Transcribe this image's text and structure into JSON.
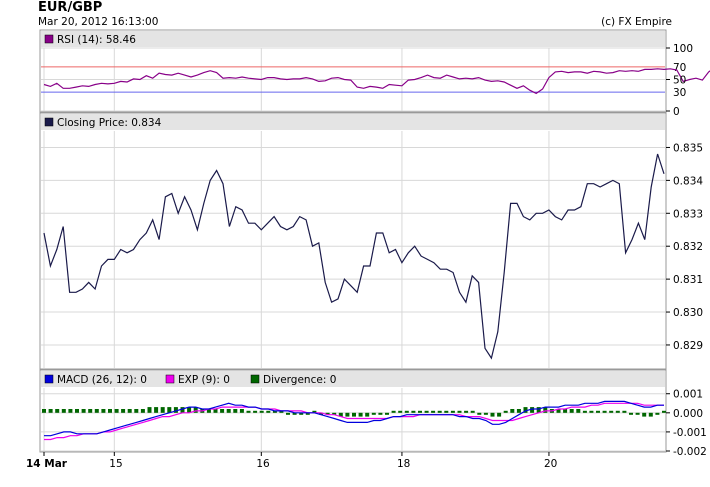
{
  "header": {
    "title": "EUR/GBP",
    "date": "Mar 20, 2012 16:13:00",
    "credit": "(c) FX Empire"
  },
  "colors": {
    "rsi": "#880088",
    "price": "#1a1a4a",
    "macd": "#0000dd",
    "exp": "#ee00ee",
    "divergence": "#006600",
    "band_upper": "#ee6666",
    "band_lower": "#6666ee",
    "grid": "#d8d8d8",
    "legend_bg": "#e4e4e4"
  },
  "chart_data": [
    {
      "type": "line",
      "panel": "rsi",
      "legend": "RSI (14): 58.46",
      "ylim": [
        0,
        100
      ],
      "yticks": [
        "100",
        "50",
        "0"
      ],
      "bands": [
        {
          "value": 70,
          "label": "70"
        },
        {
          "value": 30,
          "label": "30"
        }
      ],
      "values": [
        42,
        39,
        44,
        36,
        36,
        38,
        40,
        39,
        42,
        44,
        43,
        44,
        47,
        46,
        51,
        50,
        56,
        52,
        60,
        58,
        57,
        60,
        57,
        54,
        57,
        61,
        64,
        61,
        52,
        53,
        52,
        54,
        52,
        51,
        50,
        53,
        53,
        51,
        50,
        51,
        51,
        53,
        51,
        47,
        48,
        52,
        53,
        50,
        49,
        38,
        36,
        39,
        38,
        36,
        42,
        41,
        40,
        49,
        50,
        53,
        57,
        53,
        52,
        57,
        54,
        51,
        52,
        51,
        53,
        49,
        47,
        48,
        46,
        41,
        36,
        40,
        33,
        28,
        35,
        53,
        62,
        63,
        61,
        62,
        62,
        60,
        63,
        62,
        60,
        61,
        64,
        63,
        64,
        63,
        66,
        66,
        67,
        66,
        67,
        65,
        47,
        50,
        52,
        49,
        62,
        69,
        62,
        58
      ]
    },
    {
      "type": "line",
      "panel": "price",
      "legend": "Closing Price: 0.834",
      "ylim": [
        0.8283,
        0.8355
      ],
      "yticks": [
        "0.835",
        "0.834",
        "0.833",
        "0.832",
        "0.831",
        "0.830",
        "0.829"
      ],
      "values": [
        0.8324,
        0.8314,
        0.8319,
        0.8326,
        0.8306,
        0.8306,
        0.8307,
        0.8309,
        0.8307,
        0.8314,
        0.8316,
        0.8316,
        0.8319,
        0.8318,
        0.8319,
        0.8322,
        0.8324,
        0.8328,
        0.8322,
        0.8335,
        0.8336,
        0.833,
        0.8335,
        0.8331,
        0.8325,
        0.8333,
        0.834,
        0.8343,
        0.8339,
        0.8326,
        0.8332,
        0.8331,
        0.8327,
        0.8327,
        0.8325,
        0.8327,
        0.8329,
        0.8326,
        0.8325,
        0.8326,
        0.8329,
        0.8328,
        0.832,
        0.8321,
        0.8309,
        0.8303,
        0.8304,
        0.831,
        0.8308,
        0.8306,
        0.8314,
        0.8314,
        0.8324,
        0.8324,
        0.8318,
        0.8319,
        0.8315,
        0.8318,
        0.832,
        0.8317,
        0.8316,
        0.8315,
        0.8313,
        0.8313,
        0.8312,
        0.8306,
        0.8303,
        0.8311,
        0.8309,
        0.8289,
        0.8286,
        0.8294,
        0.8312,
        0.8333,
        0.8333,
        0.8329,
        0.8328,
        0.833,
        0.833,
        0.8331,
        0.8329,
        0.8328,
        0.8331,
        0.8331,
        0.8332,
        0.8339,
        0.8339,
        0.8338,
        0.8339,
        0.834,
        0.8339,
        0.8318,
        0.8322,
        0.8327,
        0.8322,
        0.8338,
        0.8348,
        0.8342
      ]
    },
    {
      "type": "line",
      "panel": "macd",
      "legend": [
        {
          "name": "MACD (26, 12): 0"
        },
        {
          "name": "EXP (9): 0"
        },
        {
          "name": "Divergence: 0"
        }
      ],
      "ylim": [
        -0.002,
        0.0013
      ],
      "yticks": [
        "0.001",
        "0.000",
        "-0.001",
        "-0.002"
      ],
      "macd": [
        -0.0012,
        -0.0012,
        -0.0011,
        -0.001,
        -0.001,
        -0.0011,
        -0.0011,
        -0.0011,
        -0.0011,
        -0.001,
        -0.0009,
        -0.0008,
        -0.0007,
        -0.0006,
        -0.0005,
        -0.0004,
        -0.0003,
        -0.0002,
        -0.0001,
        0.0,
        0.0001,
        0.0002,
        0.0003,
        0.0003,
        0.0002,
        0.0002,
        0.0003,
        0.0004,
        0.0005,
        0.0004,
        0.0004,
        0.0003,
        0.0003,
        0.0002,
        0.0002,
        0.0001,
        0.0001,
        0.0001,
        0.0,
        0.0,
        0.0,
        0.0,
        -0.0001,
        -0.0002,
        -0.0003,
        -0.0004,
        -0.0005,
        -0.0005,
        -0.0005,
        -0.0005,
        -0.0004,
        -0.0004,
        -0.0003,
        -0.0002,
        -0.0002,
        -0.0001,
        -0.0001,
        -0.0001,
        -0.0001,
        -0.0001,
        -0.0001,
        -0.0001,
        -0.0001,
        -0.0002,
        -0.0002,
        -0.0003,
        -0.0003,
        -0.0004,
        -0.0006,
        -0.0006,
        -0.0005,
        -0.0003,
        -0.0001,
        0.0001,
        0.0002,
        0.0002,
        0.0003,
        0.0003,
        0.0003,
        0.0004,
        0.0004,
        0.0004,
        0.0005,
        0.0005,
        0.0005,
        0.0006,
        0.0006,
        0.0006,
        0.0006,
        0.0005,
        0.0004,
        0.0003,
        0.0003,
        0.0004,
        0.0004
      ],
      "exp": [
        -0.0014,
        -0.0014,
        -0.0013,
        -0.0013,
        -0.0012,
        -0.0012,
        -0.0011,
        -0.0011,
        -0.0011,
        -0.001,
        -0.001,
        -0.0009,
        -0.0008,
        -0.0007,
        -0.0006,
        -0.0005,
        -0.0004,
        -0.0003,
        -0.0002,
        -0.0002,
        -0.0001,
        0.0,
        0.0,
        0.0001,
        0.0001,
        0.0002,
        0.0002,
        0.0003,
        0.0003,
        0.0003,
        0.0003,
        0.0003,
        0.0003,
        0.0002,
        0.0002,
        0.0002,
        0.0001,
        0.0001,
        0.0001,
        0.0001,
        0.0,
        0.0,
        0.0,
        -0.0001,
        -0.0001,
        -0.0002,
        -0.0003,
        -0.0003,
        -0.0003,
        -0.0003,
        -0.0003,
        -0.0003,
        -0.0003,
        -0.0002,
        -0.0002,
        -0.0002,
        -0.0002,
        -0.0001,
        -0.0001,
        -0.0001,
        -0.0001,
        -0.0001,
        -0.0001,
        -0.0001,
        -0.0002,
        -0.0002,
        -0.0002,
        -0.0003,
        -0.0004,
        -0.0004,
        -0.0004,
        -0.0004,
        -0.0003,
        -0.0002,
        -0.0001,
        0.0,
        0.0001,
        0.0001,
        0.0002,
        0.0002,
        0.0003,
        0.0003,
        0.0003,
        0.0004,
        0.0004,
        0.0005,
        0.0005,
        0.0005,
        0.0005,
        0.0005,
        0.0005,
        0.0004,
        0.0004,
        0.0004,
        0.0004
      ],
      "divergence": [
        0.0002,
        0.0002,
        0.0002,
        0.0002,
        0.0002,
        0.0002,
        0.0002,
        0.0002,
        0.0002,
        0.0002,
        0.0002,
        0.0002,
        0.0002,
        0.0002,
        0.0002,
        0.0002,
        0.0003,
        0.0003,
        0.0003,
        0.0003,
        0.0003,
        0.0003,
        0.0003,
        0.0003,
        0.0002,
        0.0002,
        0.0002,
        0.0002,
        0.0002,
        0.0002,
        0.0002,
        0.0001,
        0.0001,
        0.0,
        0.0,
        0.0,
        0.0,
        -0.0001,
        -0.0001,
        -0.0001,
        -0.0001,
        0.0,
        -0.0001,
        -0.0001,
        -0.0001,
        -0.0002,
        -0.0002,
        -0.0002,
        -0.0002,
        -0.0002,
        -0.0001,
        -0.0001,
        -0.0001,
        0.0,
        0.0,
        0.0,
        0.0001,
        0.0001,
        0.0001,
        0.0001,
        0.0,
        0.0001,
        0.0,
        0.0,
        0.0,
        0.0,
        -0.0001,
        -0.0001,
        -0.0002,
        -0.0002,
        0.0001,
        0.0002,
        0.0002,
        0.0003,
        0.0003,
        0.0003,
        0.0003,
        0.0002,
        0.0002,
        0.0002,
        0.0002,
        0.0002,
        0.0001,
        0.0001,
        0.0001,
        0.0001,
        0.0001,
        0.0,
        0.0,
        -0.0001,
        -0.0001,
        -0.0002,
        -0.0002,
        -0.0001,
        0.0
      ]
    }
  ],
  "x_axis": {
    "labels": [
      {
        "text": "14 Mar",
        "bold": true,
        "index": 0
      },
      {
        "text": "15",
        "bold": false,
        "index": 11
      },
      {
        "text": "16",
        "bold": false,
        "index": 34
      },
      {
        "text": "18",
        "bold": false,
        "index": 56
      },
      {
        "text": "20",
        "bold": false,
        "index": 79
      }
    ]
  }
}
